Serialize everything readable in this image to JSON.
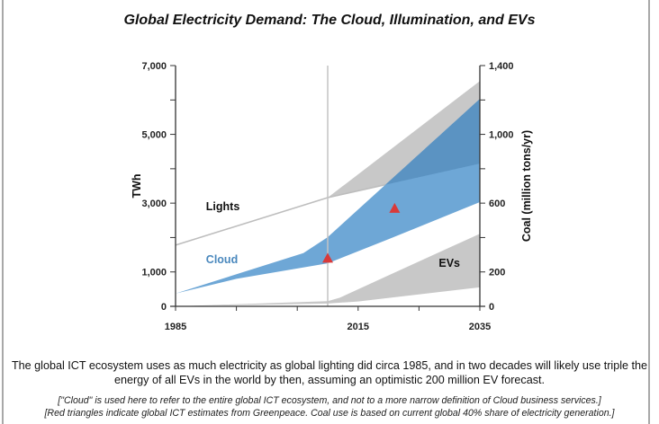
{
  "chart_data": {
    "type": "area",
    "title": "Global Electricity Demand: The Cloud, Illumination, and EVs",
    "xlabel": "",
    "ylabel": "TWh",
    "y2label": "Coal (million tons/yr)",
    "xlim": [
      1985,
      2035
    ],
    "ylim": [
      0,
      7000
    ],
    "y2lim": [
      0,
      1400
    ],
    "grid": false,
    "x_ticks": [
      1985,
      1995,
      2005,
      2015,
      2025,
      2035
    ],
    "x_tick_labels": [
      {
        "value": 1985,
        "label": "1985"
      },
      {
        "value": 2015,
        "label": "2015"
      },
      {
        "value": 2035,
        "label": "2035"
      }
    ],
    "y_ticks": [
      0,
      1000,
      2000,
      3000,
      4000,
      5000,
      6000,
      7000
    ],
    "y_tick_labels": [
      {
        "value": 0,
        "label": "0"
      },
      {
        "value": 1000,
        "label": "1,000"
      },
      {
        "value": 3000,
        "label": "3,000"
      },
      {
        "value": 5000,
        "label": "5,000"
      },
      {
        "value": 7000,
        "label": "7,000"
      }
    ],
    "y2_ticks": [
      0,
      200,
      400,
      600,
      800,
      1000,
      1200,
      1400
    ],
    "y2_tick_labels": [
      {
        "value": 0,
        "label": "0"
      },
      {
        "value": 200,
        "label": "200"
      },
      {
        "value": 600,
        "label": "600"
      },
      {
        "value": 1000,
        "label": "1,000"
      },
      {
        "value": 1400,
        "label": "1,400"
      }
    ],
    "reference_line_year": 2010,
    "series": [
      {
        "name": "Lights",
        "kind": "band",
        "color": "#c8c8c8",
        "line_color": "#bdbdbd",
        "upper": [
          [
            1985,
            1780
          ],
          [
            2010,
            3160
          ],
          [
            2035,
            6550
          ]
        ],
        "lower": [
          [
            1985,
            1780
          ],
          [
            2010,
            3160
          ],
          [
            2035,
            4150
          ]
        ]
      },
      {
        "name": "Cloud",
        "kind": "band",
        "color": "#6ea7d6",
        "overlap_color": "#5b93c2",
        "upper": [
          [
            1985,
            370
          ],
          [
            2006,
            1550
          ],
          [
            2010,
            2010
          ],
          [
            2035,
            6030
          ]
        ],
        "lower": [
          [
            1985,
            370
          ],
          [
            1995,
            800
          ],
          [
            2005,
            1100
          ],
          [
            2010,
            1250
          ],
          [
            2020,
            1950
          ],
          [
            2035,
            3030
          ]
        ]
      },
      {
        "name": "EVs",
        "kind": "band",
        "color": "#c8c8c8",
        "upper": [
          [
            1985,
            0
          ],
          [
            2010,
            150
          ],
          [
            2012,
            250
          ],
          [
            2020,
            900
          ],
          [
            2035,
            2110
          ]
        ],
        "lower": [
          [
            1985,
            0
          ],
          [
            2010,
            80
          ],
          [
            2015,
            140
          ],
          [
            2035,
            550
          ]
        ]
      }
    ],
    "markers": {
      "name": "Greenpeace ICT estimates",
      "shape": "triangle",
      "color": "#d93a3a",
      "points": [
        [
          2010,
          1400
        ],
        [
          2021,
          2850
        ]
      ]
    },
    "annotations": [
      {
        "text": "Lights",
        "x": 1990,
        "y": 2800,
        "color": "#111111"
      },
      {
        "text": "Cloud",
        "x": 1990,
        "y": 1250,
        "color": "#4a88bd"
      },
      {
        "text": "EVs",
        "x": 2030,
        "y": 1150,
        "color": "#111111"
      }
    ]
  },
  "caption": "The global ICT ecosystem uses as much electricity as global lighting did circa 1985, and in two decades will likely use triple the energy of all EVs in the world by then, assuming an optimistic 200 million EV forecast.",
  "notes": [
    "[\"Cloud\" is used here to refer to the entire global ICT ecosystem, and not to a more narrow definition of Cloud business services.]",
    "[Red triangles indicate global ICT estimates from Greenpeace.  Coal use is based on current global 40% share of electricity generation.]"
  ]
}
